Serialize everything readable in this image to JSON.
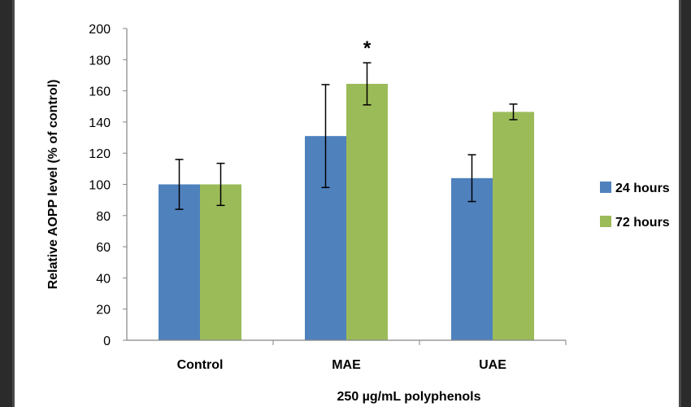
{
  "chart_data": {
    "type": "bar",
    "title": "",
    "xlabel": "250 µg/mL polyphenols",
    "ylabel": "Relative AOPP level (% of control)",
    "ylim": [
      0,
      200
    ],
    "ytick_step": 20,
    "yticks": [
      "0",
      "20",
      "40",
      "60",
      "80",
      "100",
      "120",
      "140",
      "160",
      "180",
      "200"
    ],
    "categories": [
      "Control",
      "MAE",
      "UAE"
    ],
    "series": [
      {
        "name": "24 hours",
        "color": "#4f81bd",
        "values": [
          100,
          131,
          104
        ],
        "error": [
          16,
          33,
          15
        ]
      },
      {
        "name": "72 hours",
        "color": "#9bbb59",
        "values": [
          100,
          164.5,
          146.5
        ],
        "error": [
          13.5,
          13.5,
          5
        ]
      }
    ],
    "annotations": [
      {
        "text": "*",
        "category": "MAE",
        "series": "72 hours"
      }
    ],
    "legend_position": "right",
    "grid": false
  }
}
